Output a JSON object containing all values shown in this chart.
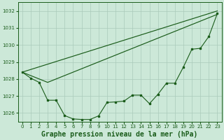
{
  "background_color": "#cce8d8",
  "grid_color": "#aacaba",
  "line_color": "#1a5c1a",
  "title": "Graphe pression niveau de la mer (hPa)",
  "title_fontsize": 7,
  "ylim": [
    1025.5,
    1032.5
  ],
  "xlim": [
    -0.5,
    23.5
  ],
  "yticks": [
    1026,
    1027,
    1028,
    1029,
    1030,
    1031,
    1032
  ],
  "xticks": [
    0,
    1,
    2,
    3,
    4,
    5,
    6,
    7,
    8,
    9,
    10,
    11,
    12,
    13,
    14,
    15,
    16,
    17,
    18,
    19,
    20,
    21,
    22,
    23
  ],
  "series1_x": [
    0,
    23
  ],
  "series1_y": [
    1028.4,
    1032.0
  ],
  "series2_x": [
    0,
    3,
    23
  ],
  "series2_y": [
    1028.4,
    1027.8,
    1031.8
  ],
  "series3": [
    1028.4,
    1028.05,
    1027.8,
    1026.75,
    1026.75,
    1025.85,
    1025.65,
    1025.62,
    1025.62,
    1025.83,
    1026.62,
    1026.65,
    1026.7,
    1027.05,
    1027.05,
    1026.55,
    1027.1,
    1027.75,
    1027.75,
    1028.7,
    1029.75,
    1029.8,
    1030.5,
    1031.85
  ]
}
